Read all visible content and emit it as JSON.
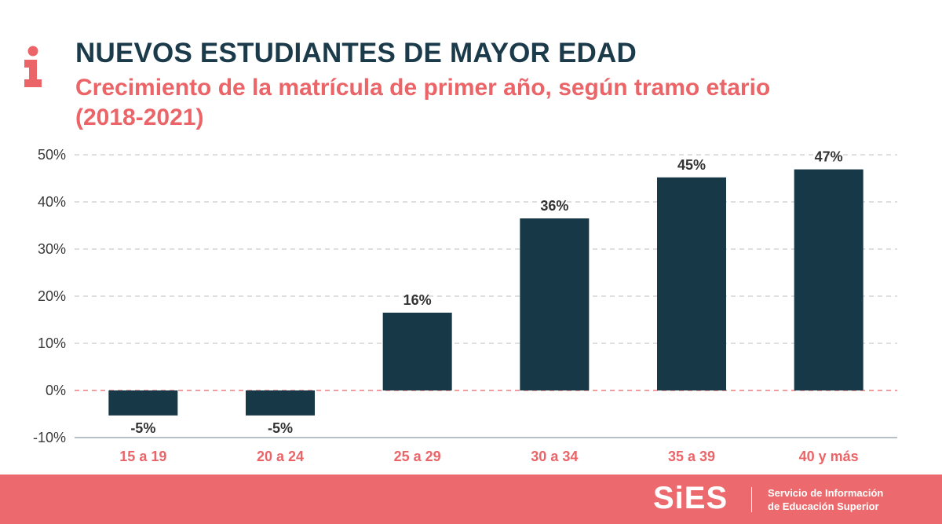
{
  "header": {
    "title": "NUEVOS ESTUDIANTES DE MAYOR EDAD",
    "subtitle": "Crecimiento de la matrícula de primer año, según tramo etario (2018-2021)",
    "icon": "info-icon"
  },
  "colors": {
    "title": "#1b3a4a",
    "accent": "#ea6468",
    "bar": "#173847",
    "footer": "#ec6a6d"
  },
  "chart_data": {
    "type": "bar",
    "categories": [
      "15 a 19",
      "20 a 24",
      "25 a 29",
      "30 a 34",
      "35 a 39",
      "40 y más"
    ],
    "values": [
      -5.3,
      -5.3,
      16.5,
      36.5,
      45.2,
      46.9
    ],
    "data_labels": [
      "-5%",
      "-5%",
      "16%",
      "36%",
      "45%",
      "47%"
    ],
    "ylim": [
      -10,
      50
    ],
    "yticks": [
      50,
      40,
      30,
      20,
      10,
      0,
      -10
    ],
    "ytick_labels": [
      "50%",
      "40%",
      "30%",
      "20%",
      "10%",
      "0%",
      "-10%"
    ],
    "grid": true,
    "zero_line": "red dashed"
  },
  "footer": {
    "brand": "SiES",
    "line1": "Servicio de Información",
    "line2": "de Educación Superior"
  }
}
